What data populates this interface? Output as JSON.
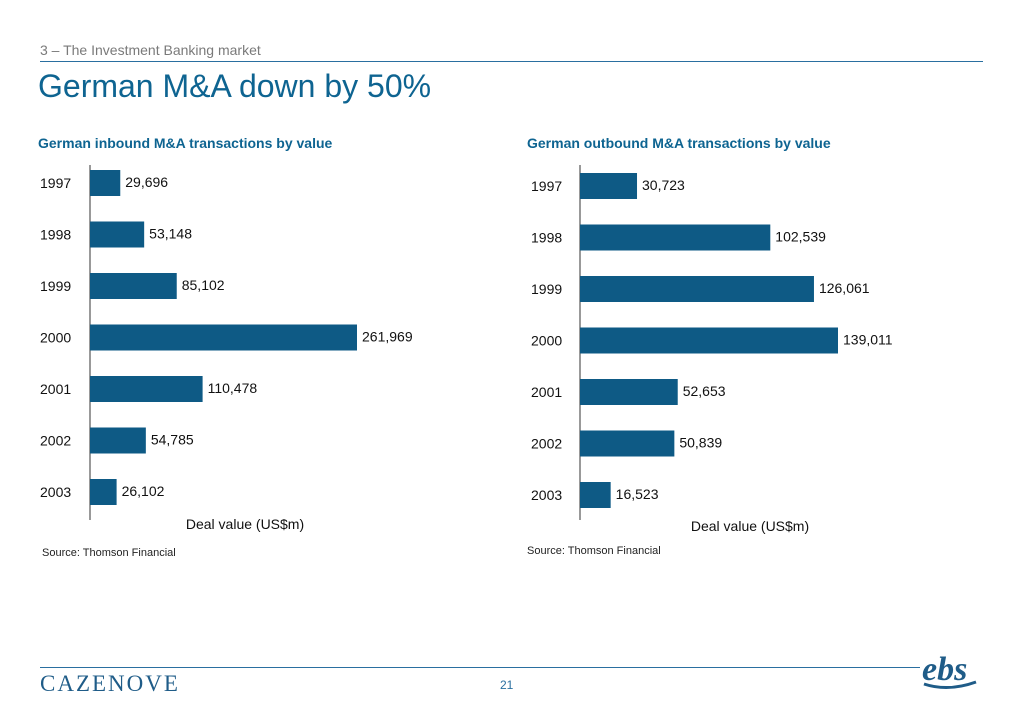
{
  "header": {
    "section": "3 – The Investment Banking market",
    "title": "German M&A down by 50%"
  },
  "footer": {
    "brand": "CAZENOVE",
    "page_number": "21",
    "logo_text": "ebs"
  },
  "colors": {
    "bar": "#0e5a85",
    "accent": "#0e6491",
    "rule": "#2a6fa0"
  },
  "chart_data": [
    {
      "type": "bar",
      "orientation": "horizontal",
      "title": "German inbound M&A transactions by value",
      "categories": [
        "1997",
        "1998",
        "1999",
        "2000",
        "2001",
        "2002",
        "2003"
      ],
      "values": [
        29696,
        53148,
        85102,
        261969,
        110478,
        54785,
        26102
      ],
      "labels": [
        "29,696",
        "53,148",
        "85,102",
        "261,969",
        "110,478",
        "54,785",
        "26,102"
      ],
      "xlabel": "Deal value (US$m)",
      "xlim": [
        0,
        261969
      ],
      "grid": false,
      "source": "Source: Thomson Financial"
    },
    {
      "type": "bar",
      "orientation": "horizontal",
      "title": "German outbound M&A transactions by value",
      "categories": [
        "1997",
        "1998",
        "1999",
        "2000",
        "2001",
        "2002",
        "2003"
      ],
      "values": [
        30723,
        102539,
        126061,
        139011,
        52653,
        50839,
        16523
      ],
      "labels": [
        "30,723",
        "102,539",
        "126,061",
        "139,011",
        "52,653",
        "50,839",
        "16,523"
      ],
      "xlabel": "Deal value (US$m)",
      "xlim": [
        0,
        139011
      ],
      "grid": false,
      "source": "Source: Thomson Financial"
    }
  ]
}
